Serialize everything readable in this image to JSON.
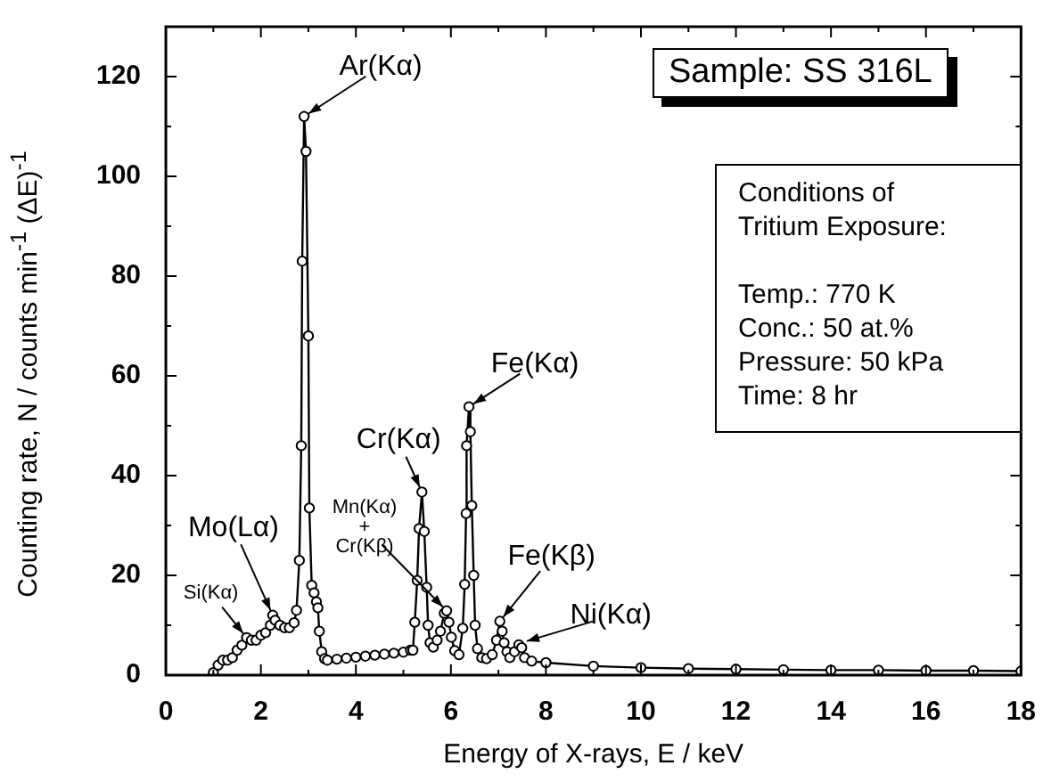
{
  "chart_data": {
    "type": "line",
    "xlabel": "Energy of X-rays, E / keV",
    "ylabel": "Counting rate, N / counts min$^{-1}$ (ΔE)$^{-1}$",
    "xlim": [
      0,
      18
    ],
    "ylim": [
      0,
      130
    ],
    "xticks": [
      0,
      {
        "value": 1,
        "label": null
      },
      2,
      {
        "value": 3,
        "label": null
      },
      4,
      {
        "value": 5,
        "label": null
      },
      6,
      {
        "value": 7,
        "label": null
      },
      8,
      {
        "value": 9,
        "label": null
      },
      10,
      {
        "value": 11,
        "label": null
      },
      12,
      {
        "value": 13,
        "label": null
      },
      14,
      {
        "value": 15,
        "label": null
      },
      16,
      {
        "value": 17,
        "label": null
      },
      18
    ],
    "yticks": [
      0,
      {
        "value": 10,
        "label": null
      },
      20,
      {
        "value": 30,
        "label": null
      },
      40,
      {
        "value": 50,
        "label": null
      },
      60,
      {
        "value": 70,
        "label": null
      },
      80,
      {
        "value": 90,
        "label": null
      },
      100,
      {
        "value": 110,
        "label": null
      },
      120
    ],
    "grid": false,
    "legend": false,
    "marker": "circle",
    "line_style": "solid",
    "series": [
      {
        "color": "#000000",
        "x": [
          1.0,
          1.1,
          1.2,
          1.3,
          1.4,
          1.5,
          1.6,
          1.7,
          1.8,
          1.9,
          2.0,
          2.1,
          2.2,
          2.25,
          2.3,
          2.4,
          2.5,
          2.6,
          2.7,
          2.75,
          2.81,
          2.85,
          2.87,
          2.91,
          2.95,
          3.0,
          3.02,
          3.07,
          3.12,
          3.17,
          3.2,
          3.23,
          3.28,
          3.34,
          3.4,
          3.6,
          3.8,
          4.0,
          4.2,
          4.4,
          4.6,
          4.8,
          5.0,
          5.15,
          5.2,
          5.24,
          5.29,
          5.33,
          5.39,
          5.44,
          5.49,
          5.52,
          5.56,
          5.63,
          5.71,
          5.78,
          5.86,
          5.91,
          5.96,
          6.01,
          6.08,
          6.17,
          6.25,
          6.29,
          6.32,
          6.33,
          6.38,
          6.41,
          6.44,
          6.48,
          6.51,
          6.56,
          6.65,
          6.75,
          6.87,
          6.96,
          7.03,
          7.08,
          7.12,
          7.18,
          7.24,
          7.34,
          7.43,
          7.49,
          7.55,
          7.7,
          8,
          9,
          10,
          11,
          12,
          13,
          14,
          15,
          16,
          17,
          18
        ],
        "values": [
          0.5,
          2,
          3,
          3,
          3.5,
          5,
          6,
          7.5,
          7,
          7,
          8,
          8.5,
          10,
          12,
          11,
          10,
          9.5,
          9.5,
          10.5,
          13,
          23,
          46,
          83,
          112,
          105,
          68,
          33.5,
          18,
          16.5,
          14.7,
          13.5,
          8.8,
          4.7,
          3.3,
          3,
          3.2,
          3.4,
          3.6,
          3.8,
          4,
          4.2,
          4.4,
          4.6,
          5,
          5,
          10.6,
          19,
          29.4,
          36.7,
          28.8,
          17.6,
          10,
          6.5,
          5.6,
          7,
          8.8,
          12.4,
          12.9,
          10.6,
          7.6,
          4.9,
          4.1,
          9.4,
          18.2,
          32.4,
          46,
          53.8,
          48.8,
          34,
          20,
          10,
          5.3,
          3.5,
          3.3,
          4.1,
          7,
          10.8,
          8.8,
          6.5,
          4.7,
          3.5,
          4.7,
          6.1,
          5.5,
          3.5,
          2.8,
          2.5,
          1.8,
          1.5,
          1.3,
          1.2,
          1.1,
          1,
          1,
          0.9,
          0.9,
          0.8
        ]
      }
    ],
    "annotations": [
      {
        "text": "Ar(Kα)",
        "x": 2.91,
        "y": 112
      },
      {
        "text": "Cr(Kα)",
        "x": 5.39,
        "y": 36.7
      },
      {
        "text": "Fe(Kα)",
        "x": 6.38,
        "y": 53.8
      },
      {
        "text": "Mn(Kα)\n+\nCr(Kβ)",
        "x": 5.91,
        "y": 12.9
      },
      {
        "text": "Mo(Lα)",
        "x": 2.25,
        "y": 12
      },
      {
        "text": "Si(Kα)",
        "x": 1.7,
        "y": 7.5
      },
      {
        "text": "Fe(Kβ)",
        "x": 7.03,
        "y": 10.8
      },
      {
        "text": "Ni(Kα)",
        "x": 7.49,
        "y": 6.5
      },
      "Sample: SS 316L",
      "Conditions of\nTritium Exposure:",
      "Temp.: 770 K\nConc.: 50 at.%\nPressure: 50 kPa\nTime: 8 hr"
    ]
  }
}
